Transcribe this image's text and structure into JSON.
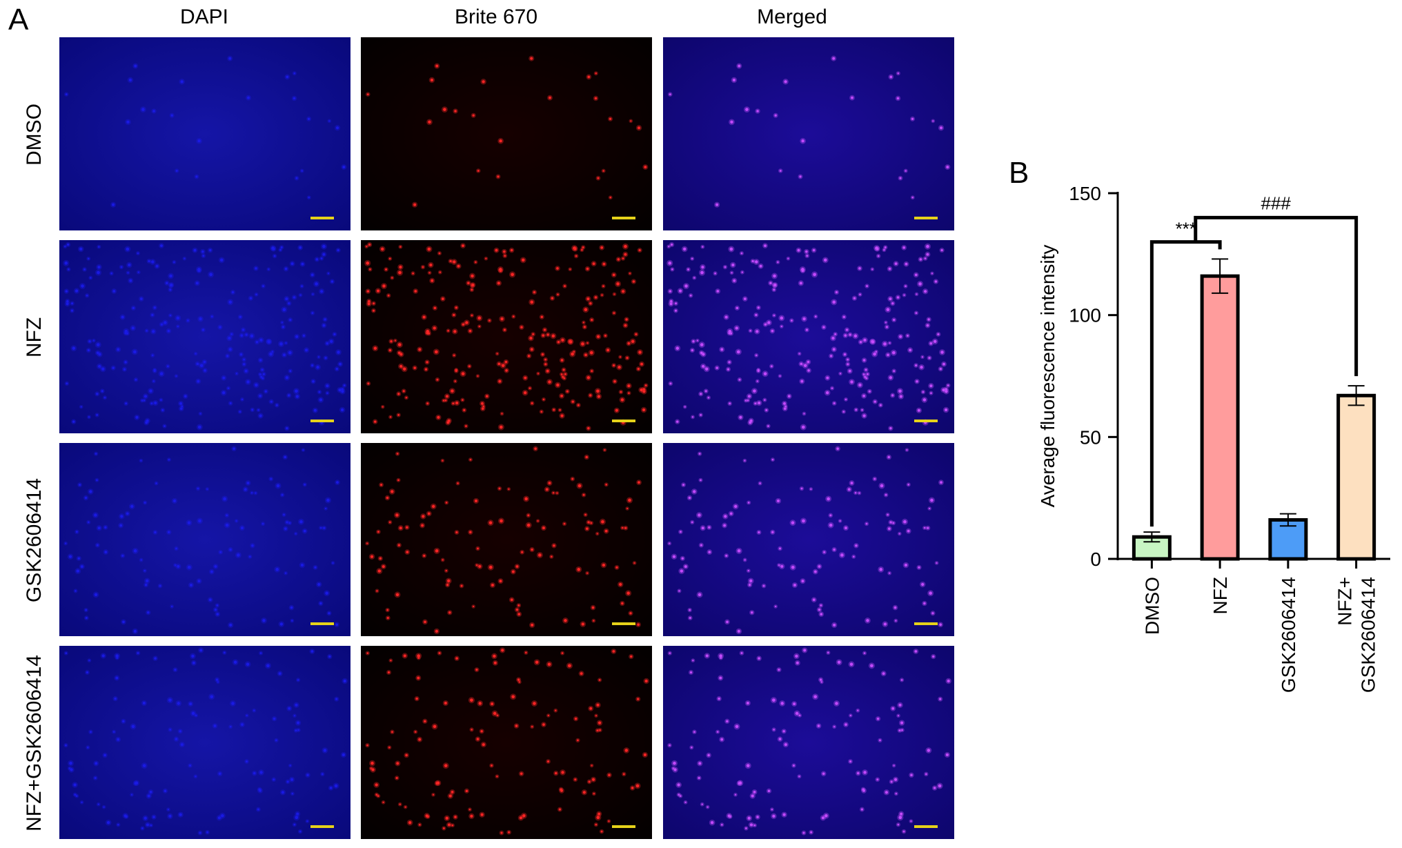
{
  "panel_a": {
    "letter": "A",
    "columns": [
      "DAPI",
      "Brite 670",
      "Merged"
    ],
    "rows": [
      "DMSO",
      "NFZ",
      "GSK2606414",
      "NFZ+GSK2606414"
    ],
    "channel_colors": {
      "dapi": "#1a1ae6",
      "brite": "#ff2626",
      "merged": "#c84cff"
    },
    "cell_density": [
      0.1,
      1.0,
      0.45,
      0.5
    ],
    "scale_bar_color": "#e6d21a"
  },
  "panel_b": {
    "letter": "B"
  },
  "chart_data": {
    "type": "bar",
    "categories": [
      "DMSO",
      "NFZ",
      "GSK2606414",
      "NFZ+\nGSK2606414"
    ],
    "values": [
      9,
      116,
      16,
      67
    ],
    "errors": [
      2,
      7,
      2.5,
      4
    ],
    "colors": [
      "#c8f5c3",
      "#ff9c9c",
      "#4d9cf7",
      "#fde0c0"
    ],
    "ylabel": "Average fluorescence intensity",
    "xlabel": "",
    "ylim": [
      0,
      150
    ],
    "yticks": [
      0,
      50,
      100,
      150
    ],
    "significance": [
      {
        "label": "***",
        "from": 0,
        "to": 1
      },
      {
        "label": "###",
        "from": 1,
        "to": 3
      }
    ]
  }
}
